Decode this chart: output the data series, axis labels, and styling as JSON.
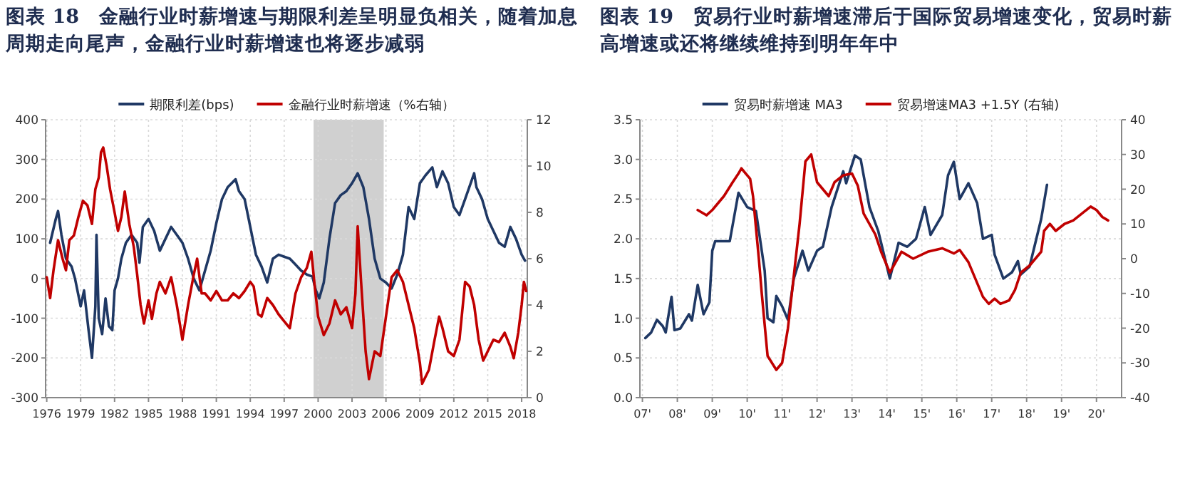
{
  "chart_data": [
    {
      "type": "line",
      "title": "图表 18　金融行业时薪增速与期限利差呈明显负相关，随着加息周期走向尾声，金融行业时薪增速也将逐步减弱",
      "legend": "top",
      "grid": true,
      "xlim": [
        1975.9,
        2018.5
      ],
      "xticks": [
        1976,
        1979,
        1982,
        1985,
        1988,
        1991,
        1994,
        1997,
        2000,
        2003,
        2006,
        2009,
        2012,
        2015,
        2018
      ],
      "ylim": [
        -300,
        400
      ],
      "yticks": [
        -300,
        -200,
        -100,
        0,
        100,
        200,
        300,
        400
      ],
      "y2lim": [
        0,
        12
      ],
      "y2ticks": [
        0,
        2,
        4,
        6,
        8,
        10,
        12
      ],
      "bands": [
        {
          "axis": "x",
          "from": 1999.6,
          "to": 2005.8,
          "color": "#d0d0d0"
        }
      ],
      "series": [
        {
          "name": "期限利差(bps)",
          "color": "#1f3864",
          "x": [
            1976.3,
            1976.8,
            1977.0,
            1977.3,
            1977.7,
            1978.2,
            1978.5,
            1979.0,
            1979.3,
            1979.7,
            1980.0,
            1980.3,
            1980.4,
            1980.6,
            1980.9,
            1981.2,
            1981.5,
            1981.8,
            1982.0,
            1982.3,
            1982.6,
            1983.0,
            1983.5,
            1984.0,
            1984.2,
            1984.5,
            1985.0,
            1985.5,
            1986.0,
            1986.5,
            1987.0,
            1987.5,
            1988.0,
            1988.5,
            1989.0,
            1989.5,
            1990.0,
            1990.5,
            1991.0,
            1991.5,
            1992.0,
            1992.7,
            1993.0,
            1993.5,
            1994.0,
            1994.5,
            1995.0,
            1995.5,
            1996.0,
            1996.5,
            1997.0,
            1997.5,
            1998.0,
            1998.5,
            1999.0,
            1999.5,
            1999.8,
            2000.1,
            2000.5,
            2001.0,
            2001.5,
            2002.0,
            2002.5,
            2003.0,
            2003.5,
            2004.0,
            2004.5,
            2005.0,
            2005.5,
            2006.0,
            2006.5,
            2007.0,
            2007.5,
            2008.0,
            2008.5,
            2009.0,
            2009.5,
            2010.1,
            2010.5,
            2011.0,
            2011.5,
            2012.0,
            2012.5,
            2013.0,
            2013.8,
            2014.0,
            2014.5,
            2015.0,
            2015.5,
            2016.0,
            2016.5,
            2017.0,
            2017.5,
            2018.0,
            2018.3
          ],
          "values": [
            90,
            150,
            170,
            110,
            50,
            30,
            0,
            -70,
            -30,
            -130,
            -200,
            -70,
            110,
            -100,
            -140,
            -50,
            -120,
            -130,
            -30,
            0,
            50,
            90,
            110,
            90,
            40,
            130,
            150,
            120,
            70,
            100,
            130,
            110,
            90,
            50,
            0,
            -30,
            20,
            70,
            140,
            200,
            230,
            250,
            220,
            200,
            130,
            60,
            30,
            -10,
            50,
            60,
            55,
            50,
            35,
            20,
            10,
            5,
            -30,
            -50,
            -10,
            100,
            190,
            210,
            220,
            240,
            265,
            230,
            150,
            50,
            0,
            -10,
            -25,
            10,
            60,
            180,
            150,
            240,
            260,
            280,
            230,
            270,
            240,
            180,
            160,
            200,
            265,
            230,
            200,
            150,
            120,
            90,
            80,
            130,
            100,
            60,
            45
          ]
        },
        {
          "name": "金融行业时薪增速（%右轴）",
          "color": "#c00000",
          "axis": "y2",
          "x": [
            1976.0,
            1976.3,
            1976.6,
            1977.0,
            1977.4,
            1977.7,
            1978.0,
            1978.4,
            1978.8,
            1979.2,
            1979.6,
            1980.0,
            1980.3,
            1980.6,
            1980.8,
            1981.0,
            1981.3,
            1981.6,
            1982.0,
            1982.3,
            1982.6,
            1982.9,
            1983.3,
            1983.7,
            1984.0,
            1984.3,
            1984.6,
            1985.0,
            1985.3,
            1985.7,
            1986.0,
            1986.5,
            1987.0,
            1987.5,
            1988.0,
            1988.5,
            1989.0,
            1989.3,
            1989.7,
            1990.0,
            1990.5,
            1991.0,
            1991.5,
            1992.0,
            1992.5,
            1993.0,
            1993.5,
            1994.0,
            1994.3,
            1994.7,
            1995.0,
            1995.5,
            1996.0,
            1996.5,
            1997.0,
            1997.5,
            1998.0,
            1998.5,
            1999.0,
            1999.4,
            1999.7,
            2000.0,
            2000.5,
            2001.0,
            2001.5,
            2002.0,
            2002.5,
            2003.0,
            2003.3,
            2003.5,
            2003.8,
            2004.2,
            2004.5,
            2005.0,
            2005.5,
            2006.0,
            2006.5,
            2007.0,
            2007.5,
            2008.0,
            2008.5,
            2009.0,
            2009.2,
            2009.8,
            2010.3,
            2010.7,
            2011.0,
            2011.5,
            2012.0,
            2012.5,
            2013.0,
            2013.4,
            2013.8,
            2014.2,
            2014.6,
            2015.0,
            2015.5,
            2016.0,
            2016.5,
            2017.0,
            2017.3,
            2017.7,
            2018.0,
            2018.2,
            2018.4
          ],
          "values": [
            5.2,
            4.3,
            5.5,
            6.8,
            6.0,
            5.5,
            6.8,
            7.0,
            7.8,
            8.5,
            8.3,
            7.5,
            9.0,
            9.5,
            10.6,
            10.8,
            10.0,
            9.0,
            8.0,
            7.2,
            7.8,
            8.9,
            7.5,
            6.5,
            5.3,
            4.0,
            3.2,
            4.2,
            3.4,
            4.5,
            5.0,
            4.5,
            5.2,
            4.0,
            2.5,
            4.0,
            5.3,
            6.0,
            4.5,
            4.5,
            4.2,
            4.6,
            4.2,
            4.2,
            4.5,
            4.3,
            4.6,
            5.0,
            4.8,
            3.6,
            3.5,
            4.3,
            4.0,
            3.6,
            3.3,
            3.0,
            4.5,
            5.2,
            5.6,
            6.3,
            4.8,
            3.5,
            2.7,
            3.2,
            4.2,
            3.6,
            3.9,
            3.0,
            4.5,
            7.4,
            5.0,
            2.0,
            0.8,
            2.0,
            1.8,
            3.5,
            5.2,
            5.5,
            5.0,
            4.0,
            3.0,
            1.5,
            0.6,
            1.2,
            2.5,
            3.5,
            3.0,
            2.0,
            1.8,
            2.5,
            5.0,
            4.8,
            4.0,
            2.5,
            1.6,
            2.0,
            2.5,
            2.4,
            2.8,
            2.2,
            1.7,
            2.8,
            4.0,
            5.0,
            4.6
          ]
        }
      ]
    },
    {
      "type": "line",
      "title": "图表 19　贸易行业时薪增速滞后于国际贸易增速变化，贸易时薪高增速或还将继续维持到明年年中",
      "legend": "top",
      "grid": true,
      "xlim": [
        "2006-12-05",
        "2020-09-20"
      ],
      "xticks": [
        {
          "value": "2007",
          "label": "07'"
        },
        {
          "value": "2008",
          "label": "08'"
        },
        {
          "value": "2009",
          "label": "09'"
        },
        {
          "value": "2010",
          "label": "10'"
        },
        {
          "value": "2011",
          "label": "11'"
        },
        {
          "value": "2012",
          "label": "12'"
        },
        {
          "value": "2013",
          "label": "13'"
        },
        {
          "value": "2014",
          "label": "14'"
        },
        {
          "value": "2015",
          "label": "15'"
        },
        {
          "value": "2016",
          "label": "16'"
        },
        {
          "value": "2017",
          "label": "17'"
        },
        {
          "value": "2018",
          "label": "18'"
        },
        {
          "value": "2019",
          "label": "19'"
        },
        {
          "value": "2020",
          "label": "20'"
        }
      ],
      "ylim": [
        0,
        3.5
      ],
      "yticks": [
        {
          "value": 0,
          "label": "0.0"
        },
        0.5,
        {
          "value": 1,
          "label": "1.0"
        },
        1.5,
        {
          "value": 2,
          "label": "2.0"
        },
        2.5,
        {
          "value": 3,
          "label": "3.0"
        },
        3.5
      ],
      "y2lim": [
        -40,
        40
      ],
      "y2ticks": [
        -40,
        -30,
        -20,
        -10,
        0,
        10,
        20,
        30,
        40
      ],
      "series": [
        {
          "name": "贸易时薪增速 MA3",
          "color": "#1f3864",
          "x": [
            "2007-02",
            "2007-04",
            "2007-06",
            "2007-08",
            "2007-09",
            "2007-11",
            "2007-12",
            "2008-02",
            "2008-05",
            "2008-06",
            "2008-08",
            "2008-10",
            "2008-12",
            "2009-01",
            "2009-02",
            "2009-07",
            "2009-10",
            "2010-01",
            "2010-04",
            "2010-07",
            "2010-08",
            "2010-10",
            "2010-11",
            "2011-01",
            "2011-03",
            "2011-05",
            "2011-08",
            "2011-10",
            "2012-01",
            "2012-03",
            "2012-06",
            "2012-10",
            "2012-11",
            "2013-02",
            "2013-04",
            "2013-07",
            "2013-10",
            "2014-02",
            "2014-05",
            "2014-08",
            "2014-11",
            "2015-02",
            "2015-04",
            "2015-08",
            "2015-10",
            "2015-12",
            "2016-02",
            "2016-05",
            "2016-08",
            "2016-10",
            "2017-01",
            "2017-02",
            "2017-05",
            "2017-08",
            "2017-10",
            "2017-11",
            "2018-02",
            "2018-04",
            "2018-06",
            "2018-08"
          ],
          "values": [
            0.75,
            0.82,
            0.98,
            0.9,
            0.82,
            1.27,
            0.85,
            0.87,
            1.05,
            0.97,
            1.42,
            1.05,
            1.2,
            1.85,
            1.97,
            1.97,
            2.58,
            2.4,
            2.35,
            1.6,
            1.0,
            0.95,
            1.28,
            1.15,
            0.98,
            1.5,
            1.85,
            1.6,
            1.85,
            1.9,
            2.4,
            2.85,
            2.7,
            3.05,
            3.0,
            2.4,
            2.1,
            1.5,
            1.95,
            1.9,
            2.0,
            2.4,
            2.05,
            2.3,
            2.8,
            2.97,
            2.5,
            2.7,
            2.45,
            2.0,
            2.05,
            1.8,
            1.5,
            1.58,
            1.72,
            1.55,
            1.65,
            1.95,
            2.25,
            2.68
          ]
        },
        {
          "name": "贸易增速MA3 +1.5Y (右轴)",
          "color": "#c00000",
          "axis": "y2",
          "x": [
            "2008-08",
            "2008-11",
            "2009-01",
            "2009-05",
            "2009-08",
            "2009-10",
            "2009-11",
            "2010-02",
            "2010-03",
            "2010-05",
            "2010-06",
            "2010-08",
            "2010-11",
            "2011-01",
            "2011-03",
            "2011-05",
            "2011-07",
            "2011-09",
            "2011-11",
            "2012-01",
            "2012-05",
            "2012-07",
            "2012-10",
            "2013-01",
            "2013-03",
            "2013-05",
            "2013-09",
            "2013-11",
            "2014-02",
            "2014-06",
            "2014-10",
            "2015-03",
            "2015-08",
            "2015-12",
            "2016-02",
            "2016-05",
            "2016-07",
            "2016-10",
            "2016-12",
            "2017-02",
            "2017-04",
            "2017-07",
            "2017-09",
            "2017-11",
            "2018-02",
            "2018-06",
            "2018-07",
            "2018-09",
            "2018-11",
            "2019-02",
            "2019-05",
            "2019-08",
            "2019-11",
            "2020-01",
            "2020-03",
            "2020-05"
          ],
          "values": [
            14,
            12.5,
            14,
            18,
            22,
            24.5,
            26,
            23,
            18,
            0,
            -10,
            -28,
            -32,
            -30,
            -20,
            -5,
            10,
            28,
            30,
            22,
            18,
            22,
            24,
            24.5,
            21,
            13,
            7,
            2,
            -4,
            2,
            0,
            2,
            3,
            1.5,
            2.5,
            -1,
            -5,
            -11,
            -13,
            -11.5,
            -13,
            -12,
            -9,
            -4,
            -2,
            2,
            8,
            10,
            8,
            10,
            11,
            13,
            15,
            14,
            12,
            11
          ]
        }
      ]
    }
  ]
}
